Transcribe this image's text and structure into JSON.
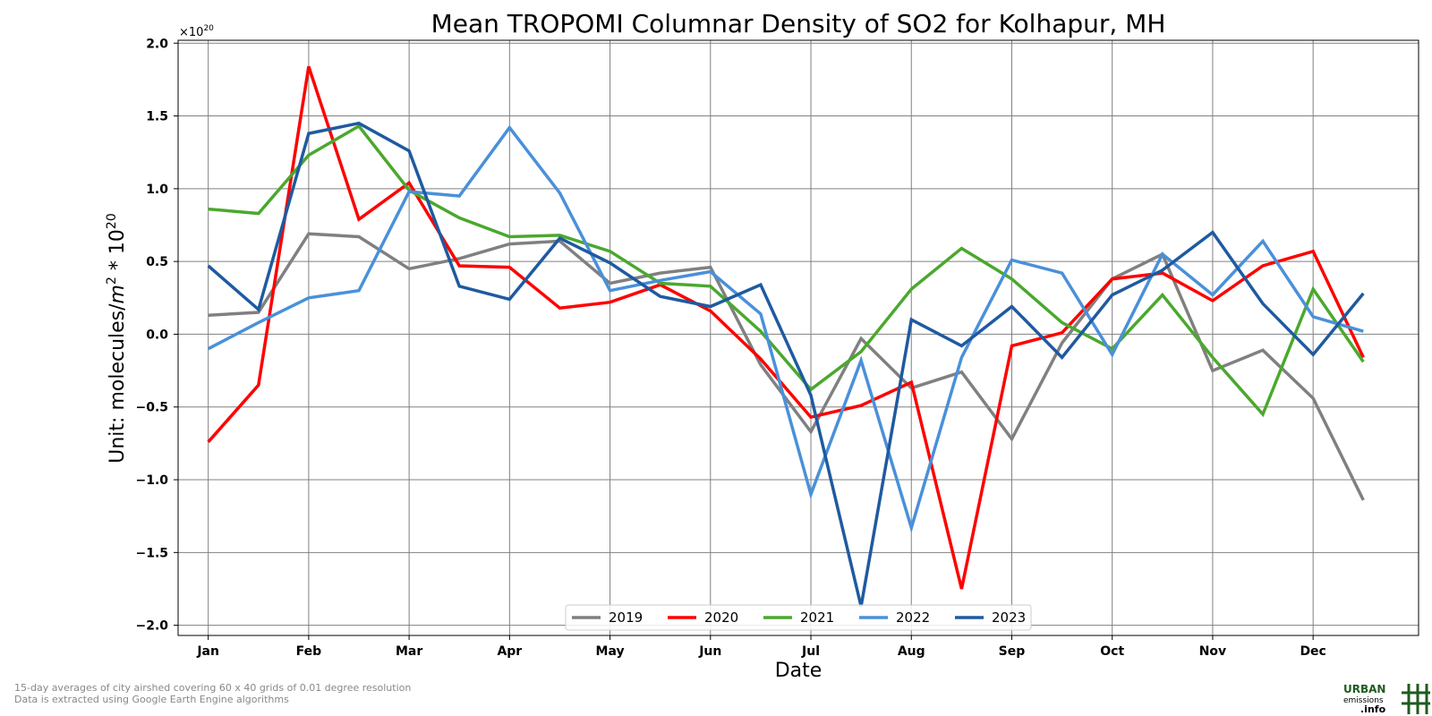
{
  "chart_data": {
    "type": "line",
    "title": "Mean TROPOMI Columnar Density of SO2 for Kolhapur, MH",
    "xlabel": "Date",
    "ylabel_prefix": "Unit: molecules/",
    "ylabel_m": "m",
    "ylabel_exp1": "2",
    "ylabel_mid": " * 10",
    "ylabel_exp2": "20",
    "offset_text_base": "×10",
    "offset_text_exp": "20",
    "x_ticks": [
      "Jan",
      "Feb",
      "Mar",
      "Apr",
      "May",
      "Jun",
      "Jul",
      "Aug",
      "Sep",
      "Oct",
      "Nov",
      "Dec"
    ],
    "y_ticks": [
      "2.0",
      "1.5",
      "1.0",
      "0.5",
      "0.0",
      "−0.5",
      "−1.0",
      "−1.5",
      "−2.0"
    ],
    "y_tick_values": [
      2.0,
      1.5,
      1.0,
      0.5,
      0.0,
      -0.5,
      -1.0,
      -1.5,
      -2.0
    ],
    "ylim": [
      -2.07,
      2.02
    ],
    "xlim": [
      -0.6,
      24.1
    ],
    "grid": true,
    "legend_position": "bottom-center",
    "x_points_note": "half-month periods, index 0 = Jan 1st half ... 23 = Dec 2nd half",
    "series": [
      {
        "name": "2019",
        "color": "#808080",
        "values": [
          0.13,
          0.15,
          0.69,
          0.67,
          0.45,
          0.52,
          0.62,
          0.64,
          0.35,
          0.42,
          0.46,
          -0.21,
          -0.67,
          -0.03,
          -0.37,
          -0.26,
          -0.72,
          -0.06,
          0.38,
          0.55,
          -0.25,
          -0.11,
          -0.44,
          -1.14
        ]
      },
      {
        "name": "2020",
        "color": "#ff0000",
        "values": [
          -0.74,
          -0.35,
          1.84,
          0.79,
          1.04,
          0.47,
          0.46,
          0.18,
          0.22,
          0.34,
          0.16,
          -0.17,
          -0.57,
          -0.49,
          -0.33,
          -1.75,
          -0.08,
          0.01,
          0.38,
          0.42,
          0.23,
          0.47,
          0.57,
          -0.16
        ]
      },
      {
        "name": "2021",
        "color": "#4ba82e",
        "values": [
          0.86,
          0.83,
          1.23,
          1.43,
          0.99,
          0.8,
          0.67,
          0.68,
          0.57,
          0.35,
          0.33,
          0.02,
          -0.38,
          -0.12,
          0.31,
          0.59,
          0.38,
          0.08,
          -0.1,
          0.27,
          -0.16,
          -0.55,
          0.31,
          -0.19
        ]
      },
      {
        "name": "2022",
        "color": "#4a90d9",
        "values": [
          -0.1,
          0.08,
          0.25,
          0.3,
          0.98,
          0.95,
          1.42,
          0.97,
          0.3,
          0.37,
          0.43,
          0.14,
          -1.1,
          -0.18,
          -1.33,
          -0.16,
          0.51,
          0.42,
          -0.14,
          0.55,
          0.27,
          0.64,
          0.12,
          0.02
        ]
      },
      {
        "name": "2023",
        "color": "#1f5aa0",
        "values": [
          0.47,
          0.17,
          1.38,
          1.45,
          1.26,
          0.33,
          0.24,
          0.66,
          0.49,
          0.26,
          0.19,
          0.34,
          -0.42,
          -1.87,
          0.1,
          -0.08,
          0.19,
          -0.16,
          0.27,
          0.44,
          0.7,
          0.21,
          -0.14,
          0.28
        ]
      }
    ]
  },
  "footnotes": {
    "line1": "15-day averages of city airshed covering 60 x 40 grids of 0.01 degree resolution",
    "line2": "Data is extracted using Google Earth Engine algorithms"
  },
  "logo": {
    "line1": "URBAN",
    "line2": "emissions",
    "line3": ".info",
    "color": "#1f5b1f"
  }
}
